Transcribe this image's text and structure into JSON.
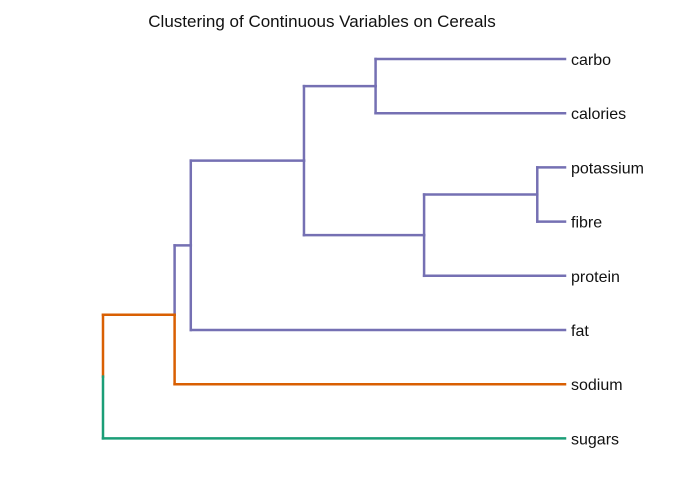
{
  "chart_data": {
    "type": "dendrogram",
    "title": "Clustering of Continuous Variables on Cereals",
    "orientation": "horizontal",
    "leaves": [
      "carbo",
      "calories",
      "potassium",
      "fibre",
      "protein",
      "fat",
      "sodium",
      "sugars"
    ],
    "colors": {
      "cluster_purple": "#7570B3",
      "cluster_orange": "#D95F02",
      "cluster_green": "#1B9E77",
      "root": "#000000"
    },
    "tree": {
      "name": "root",
      "height": 1.0,
      "color": "#000000",
      "children": [
        {
          "name": "n6",
          "height": 0.845,
          "color": "#D95F02",
          "children": [
            {
              "name": "n5",
              "height": 0.81,
              "color": "#7570B3",
              "children": [
                {
                  "name": "n4",
                  "height": 0.565,
                  "color": "#7570B3",
                  "children": [
                    {
                      "name": "n1",
                      "height": 0.41,
                      "color": "#7570B3",
                      "children": [
                        {
                          "name": "carbo",
                          "height": 0,
                          "color": "#7570B3"
                        },
                        {
                          "name": "calories",
                          "height": 0,
                          "color": "#7570B3"
                        }
                      ]
                    },
                    {
                      "name": "n3",
                      "height": 0.305,
                      "color": "#7570B3",
                      "children": [
                        {
                          "name": "n2",
                          "height": 0.06,
                          "color": "#7570B3",
                          "children": [
                            {
                              "name": "potassium",
                              "height": 0,
                              "color": "#7570B3"
                            },
                            {
                              "name": "fibre",
                              "height": 0,
                              "color": "#7570B3"
                            }
                          ]
                        },
                        {
                          "name": "protein",
                          "height": 0,
                          "color": "#7570B3"
                        }
                      ]
                    }
                  ]
                },
                {
                  "name": "fat",
                  "height": 0,
                  "color": "#7570B3"
                }
              ]
            },
            {
              "name": "sodium",
              "height": 0,
              "color": "#D95F02"
            }
          ]
        },
        {
          "name": "sugars",
          "height": 0,
          "color": "#1B9E77"
        }
      ]
    }
  }
}
